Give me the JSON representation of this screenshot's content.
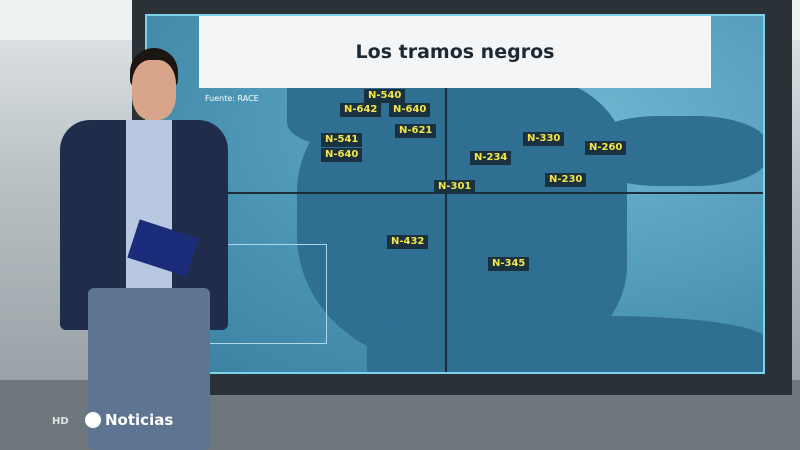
{
  "graphic": {
    "title": "Los tramos negros",
    "source": "Fuente: RACE",
    "roads": [
      "N-540",
      "N-642",
      "N-640",
      "N-621",
      "N-541",
      "N-640",
      "N-330",
      "N-260",
      "N-234",
      "N-230",
      "N-301",
      "N-432",
      "N-345"
    ],
    "label_color": "#f4e64a",
    "map_color": "#4e97b6"
  },
  "broadcast": {
    "hd_badge": "HD",
    "logo_text": "Noticias"
  }
}
